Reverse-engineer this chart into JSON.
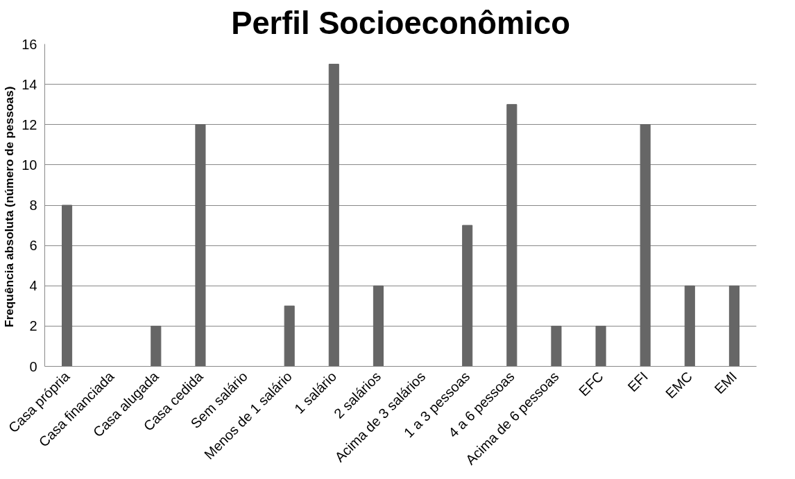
{
  "chart_data": {
    "type": "bar",
    "title": "Perfil Socioeconômico",
    "ylabel": "Frequência absoluta (número  de pessoas)",
    "categories": [
      "Casa própria",
      "Casa financiada",
      "Casa alugada",
      "Casa cedida",
      "Sem salário",
      "Menos de 1 salário",
      "1 salário",
      "2 salários",
      "Acima de 3 salários",
      "1 a 3 pessoas",
      "4 a 6 pessoas",
      "Acima de 6 pessoas",
      "EFC",
      "EFI",
      "EMC",
      "EMI"
    ],
    "values": [
      8,
      0,
      2,
      12,
      0,
      3,
      15,
      4,
      0,
      7,
      13,
      2,
      2,
      12,
      4,
      4
    ],
    "color": "#666666",
    "ylim": [
      0,
      16
    ],
    "yticks": [
      0,
      2,
      4,
      6,
      8,
      10,
      12,
      14,
      16
    ],
    "grid": "y"
  }
}
